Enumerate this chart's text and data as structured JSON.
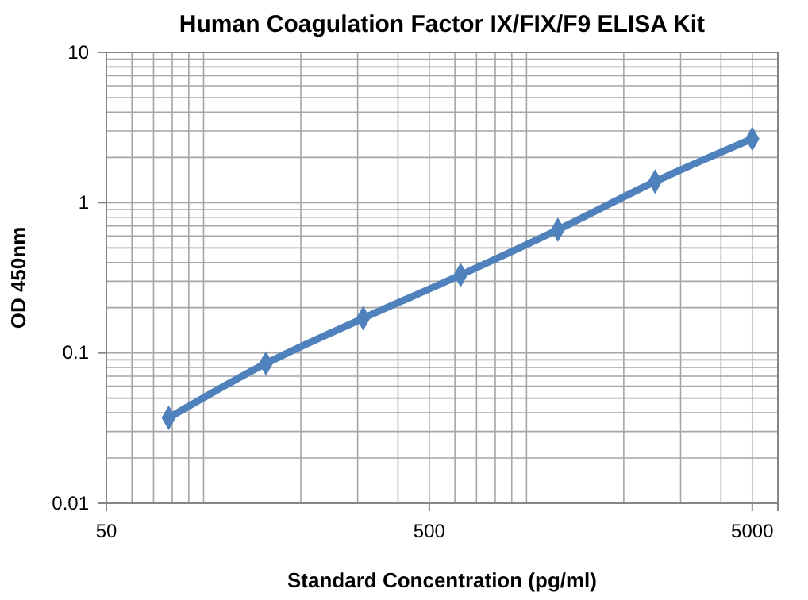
{
  "chart_data": {
    "type": "line",
    "title": "Human Coagulation Factor IX/FIX/F9 ELISA Kit",
    "xlabel": "Standard Concentration (pg/ml)",
    "ylabel": "OD 450nm",
    "x": [
      78,
      156,
      312,
      625,
      1250,
      2500,
      5000
    ],
    "series": [
      {
        "color": "#4f81bd",
        "values": [
          0.037,
          0.085,
          0.17,
          0.33,
          0.66,
          1.38,
          2.66
        ]
      }
    ],
    "xlim": [
      50,
      6000
    ],
    "ylim": [
      0.01,
      10
    ],
    "xticks": [
      50,
      500,
      5000
    ],
    "yticks": [
      0.01,
      0.1,
      1,
      10
    ],
    "log": "xy",
    "grid": true,
    "marker": "diamond",
    "line_style": "solid"
  }
}
